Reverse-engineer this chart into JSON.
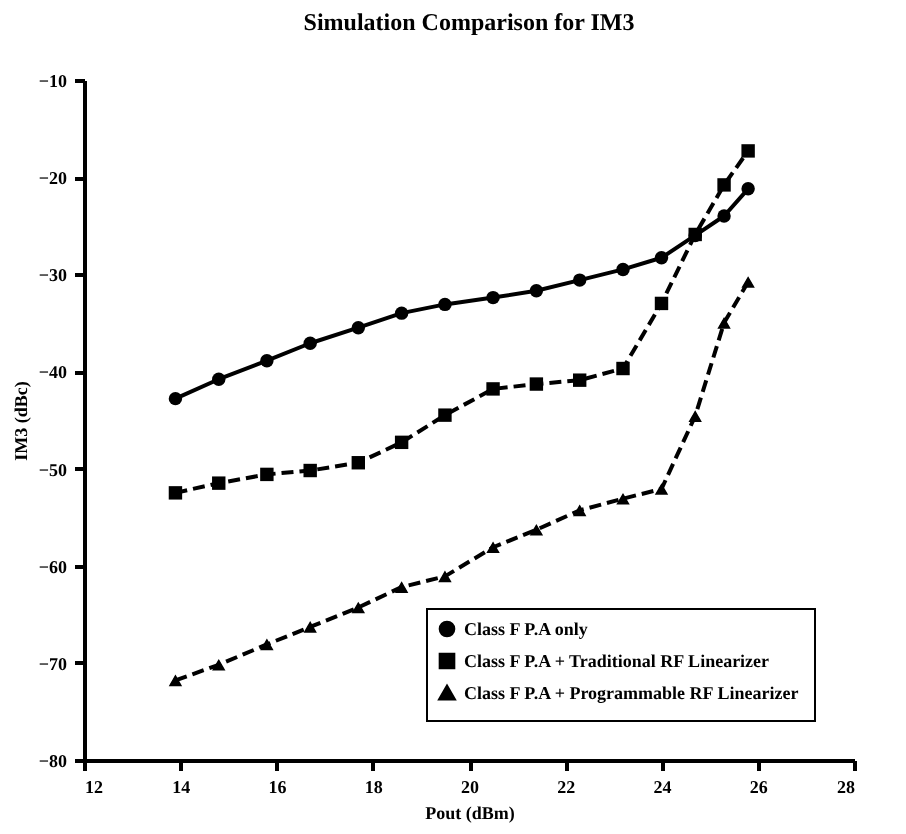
{
  "chart_data": {
    "type": "line",
    "title": "Simulation Comparison for IM3",
    "xlabel": "Pout (dBm)",
    "ylabel": "IM3 (dBc)",
    "x": [
      13.9,
      14.8,
      15.8,
      16.7,
      17.7,
      18.6,
      19.5,
      20.5,
      21.4,
      22.3,
      23.2,
      24.0,
      24.7,
      25.3,
      25.8
    ],
    "xlim": [
      12,
      28
    ],
    "xticks": [
      12,
      14,
      16,
      18,
      20,
      22,
      24,
      26,
      28
    ],
    "ylim": [
      -80,
      -10
    ],
    "yticks": [
      -80,
      -70,
      -60,
      -50,
      -40,
      -30,
      -20,
      -10
    ],
    "grid": false,
    "legend": "bottom right",
    "series": [
      {
        "name": "Class F P.A only",
        "color": "#000000",
        "marker": "circle",
        "line_style": "solid",
        "values": [
          -42.8,
          -40.8,
          -38.9,
          -37.1,
          -35.5,
          -34.0,
          -33.1,
          -32.4,
          -31.7,
          -30.6,
          -29.5,
          -28.3,
          -26.0,
          -24.0,
          -21.2
        ]
      },
      {
        "name": "Class F P.A + Traditional RF Linearizer",
        "color": "#000000",
        "marker": "square",
        "line_style": "dashed",
        "values": [
          -52.5,
          -51.5,
          -50.6,
          -50.2,
          -49.4,
          -47.3,
          -44.5,
          -41.8,
          -41.3,
          -40.9,
          -39.7,
          -33.0,
          -25.9,
          -20.8,
          -17.3
        ]
      },
      {
        "name": "Class F P.A + Programmable RF Linearizer",
        "color": "#000000",
        "marker": "triangle",
        "line_style": "dashed",
        "values": [
          -71.8,
          -70.2,
          -68.1,
          -66.3,
          -64.3,
          -62.2,
          -61.1,
          -58.1,
          -56.3,
          -54.3,
          -53.1,
          -52.1,
          -44.6,
          -35.0,
          -30.8
        ]
      }
    ]
  }
}
